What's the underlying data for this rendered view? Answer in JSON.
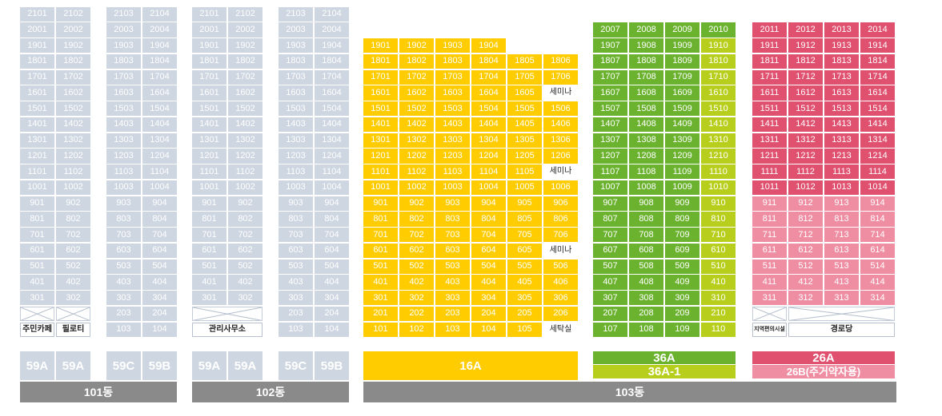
{
  "buildings": [
    {
      "id": "101",
      "label": "101동",
      "floors_top": 21,
      "column_groups": [
        {
          "columns": [
            "01",
            "02"
          ],
          "type_labels": [
            "59A",
            "59A"
          ],
          "ground": {
            "kind": "facility-pair",
            "labels": [
              "주민카페",
              "필로티"
            ]
          }
        },
        {
          "columns": [
            "03",
            "04"
          ],
          "type_labels": [
            "59C",
            "59B"
          ],
          "ground": {
            "kind": "units",
            "second_floor": true
          }
        }
      ]
    },
    {
      "id": "102",
      "label": "102동",
      "floors_top": 21,
      "column_groups": [
        {
          "columns": [
            "01",
            "02"
          ],
          "type_labels": [
            "59A",
            "59A"
          ],
          "ground": {
            "kind": "facility-wide",
            "label": "관리사무소"
          }
        },
        {
          "columns": [
            "03",
            "04"
          ],
          "type_labels": [
            "59C",
            "59B"
          ],
          "ground": {
            "kind": "units",
            "second_floor": true
          }
        }
      ]
    },
    {
      "id": "103",
      "label": "103동",
      "sections": [
        {
          "color": "yellow",
          "columns": [
            "01",
            "02",
            "03",
            "04",
            "05",
            "06"
          ],
          "top_floor_by_column": [
            19,
            19,
            19,
            19,
            18,
            18
          ],
          "special_cells": [
            {
              "floor": 16,
              "column": "06",
              "label": "세미나"
            },
            {
              "floor": 11,
              "column": "06",
              "label": "세미나"
            },
            {
              "floor": 6,
              "column": "06",
              "label": "세미나"
            },
            {
              "floor": 1,
              "column": "06",
              "label": "세탁실"
            }
          ],
          "type_labels": [
            "16A"
          ]
        },
        {
          "color": "green",
          "columns": [
            "07",
            "08",
            "09",
            "10"
          ],
          "top_floor": 20,
          "lime_column": "10",
          "type_labels": [
            "36A",
            "36A-1"
          ]
        },
        {
          "color": "red",
          "columns": [
            "11",
            "12",
            "13",
            "14"
          ],
          "top_floor": 20,
          "lowest_floor": 3,
          "ground": {
            "labels": [
              "지역편의시설",
              "경로당"
            ]
          },
          "type_labels": [
            "26A",
            "26B(주거약자용)"
          ]
        }
      ]
    }
  ],
  "colors": {
    "slate": "#cdd6e1",
    "yellow": "#ffcc00",
    "green": "#6bb22f",
    "lime": "#b7cf1c",
    "red": "#e0506f",
    "pink": "#ef8ea3",
    "building_bar": "#8a8a8a"
  }
}
